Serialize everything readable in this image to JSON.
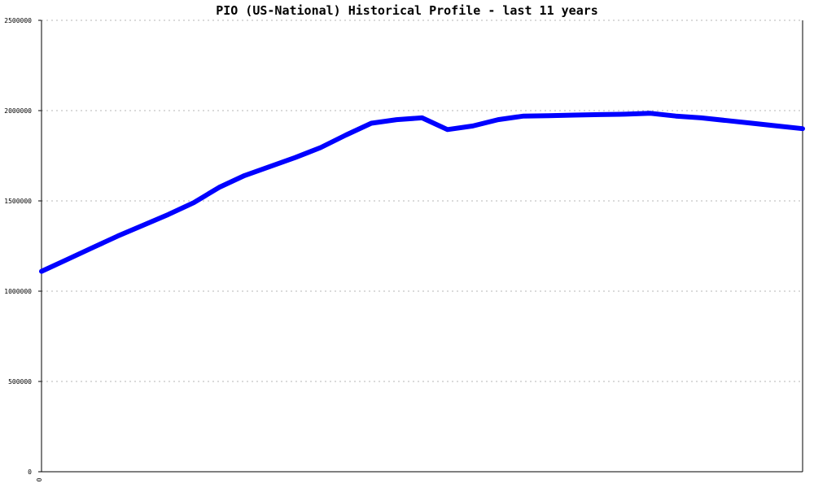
{
  "chart_data": {
    "type": "line",
    "title": "PIO (US-National) Historical Profile - last 11 years",
    "xlabel": "",
    "ylabel": "",
    "ylim": [
      0,
      2500000
    ],
    "yticks": [
      "0",
      "500000",
      "1000000",
      "1500000",
      "2000000",
      "2500000"
    ],
    "xticks": [
      "0"
    ],
    "grid": true,
    "series": [
      {
        "color": "#0000ff",
        "values": [
          1110000,
          1175000,
          1240000,
          1305000,
          1365000,
          1425000,
          1490000,
          1575000,
          1640000,
          1690000,
          1740000,
          1795000,
          1865000,
          1930000,
          1950000,
          1960000,
          1895000,
          1915000,
          1950000,
          1970000,
          1972000,
          1975000,
          1978000,
          1980000,
          1985000,
          1970000,
          1960000,
          1945000,
          1930000,
          1915000,
          1900000
        ]
      }
    ]
  }
}
